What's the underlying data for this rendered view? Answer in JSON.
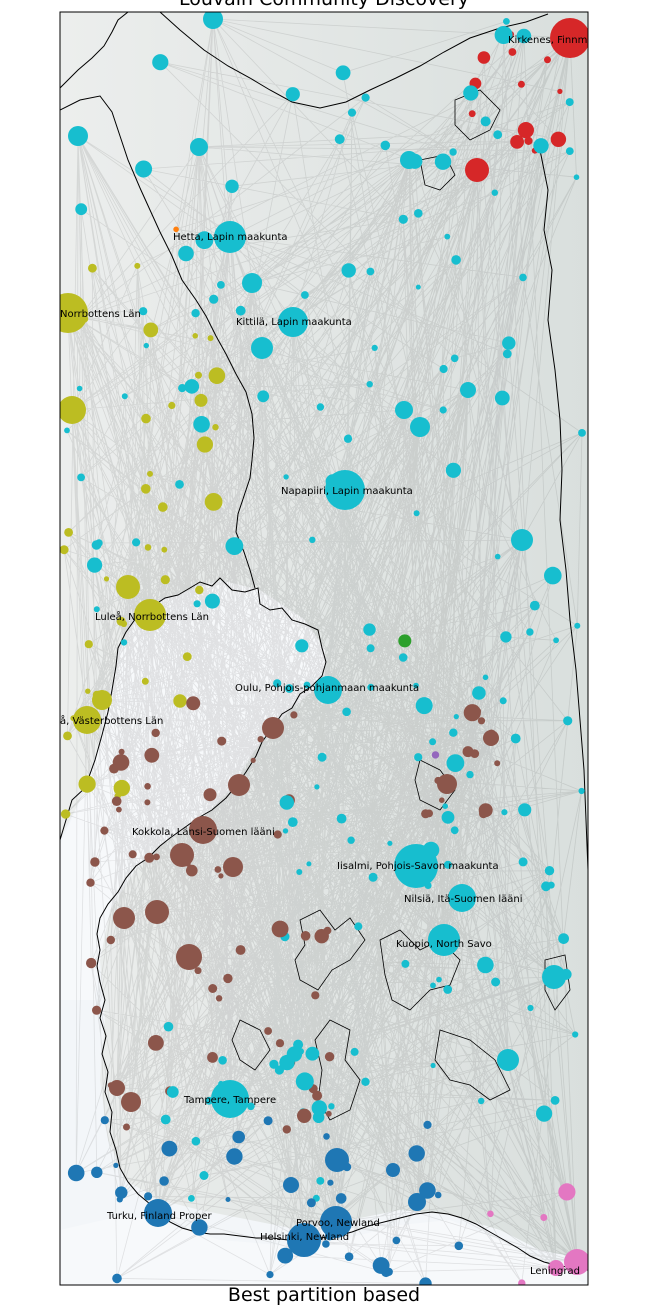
{
  "title": "Louvain Community Discovery",
  "footer": "Best partition based",
  "community_colors": {
    "cyan": "#17becf",
    "olive": "#bcbd22",
    "brown": "#8c564b",
    "blue": "#1f77b4",
    "red": "#d62728",
    "pink": "#e377c2",
    "green": "#2ca02c",
    "orange": "#ff7f0e",
    "purple": "#9467bd"
  },
  "labels": [
    {
      "id": "kirkenes",
      "text": "Kirkenes, Finnm"
    },
    {
      "id": "hetta",
      "text": "Hetta, Lapin maakunta"
    },
    {
      "id": "norrbotten",
      "text": "Norrbottens Län"
    },
    {
      "id": "kittila",
      "text": "Kittilä, Lapin maakunta"
    },
    {
      "id": "napapiiri",
      "text": "Napapiiri, Lapin maakunta"
    },
    {
      "id": "lulea",
      "text": "Luleå, Norrbottens Län"
    },
    {
      "id": "oulu",
      "text": "Oulu, Pohjois-pohjanmaan maakunta"
    },
    {
      "id": "umea",
      "text": "å, Västerbottens Län"
    },
    {
      "id": "kokkola",
      "text": "Kokkola, Länsi-Suomen lääni"
    },
    {
      "id": "iisalmi",
      "text": "Iisalmi, Pohjois-Savon maakunta"
    },
    {
      "id": "nilsia",
      "text": "Nilsiä, Itä-Suomen lääni"
    },
    {
      "id": "kuopio",
      "text": "Kuopio, North Savo"
    },
    {
      "id": "tampere",
      "text": "Tampere, Tampere"
    },
    {
      "id": "turku",
      "text": "Turku, Finland Proper"
    },
    {
      "id": "porvoo",
      "text": "Porvoo, Newland"
    },
    {
      "id": "helsinki",
      "text": "Helsinki, Newland"
    },
    {
      "id": "leningrad",
      "text": "Leningrad"
    }
  ]
}
